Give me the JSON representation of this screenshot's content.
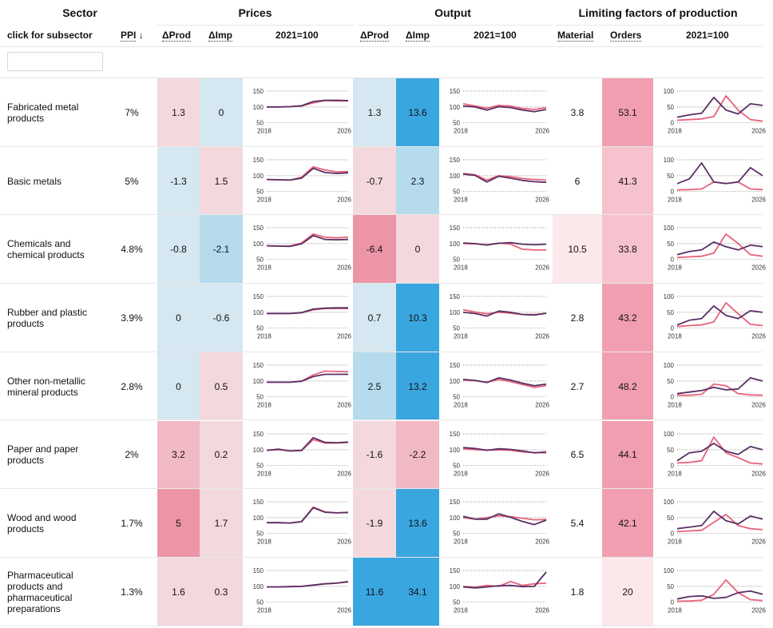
{
  "header": {
    "sector": "Sector",
    "prices": "Prices",
    "output": "Output",
    "limiting": "Limiting factors of production"
  },
  "subheader": {
    "subsector": "click for subsector",
    "ppi": "PPI",
    "ppi_sort": "↓",
    "dprod": "ΔProd",
    "dimp": "ΔImp",
    "index": "2021=100",
    "material": "Material",
    "orders": "Orders"
  },
  "search": {
    "value": "",
    "placeholder": ""
  },
  "axis": {
    "prices_ticks": [
      "150",
      "100",
      "50"
    ],
    "output_ticks": [
      "150",
      "100",
      "50"
    ],
    "limiting_ticks": [
      "100",
      "50",
      "0"
    ],
    "year_start": "2018",
    "year_end": "2026"
  },
  "colors": {
    "pos_strong": "#ec95a6",
    "pos_mid": "#f0b9c3",
    "pos_light": "#f3d9dd",
    "pos_faint": "#fbe8eb",
    "neg_light": "#d5e7f0",
    "neg_mid": "#b5dbed",
    "neg_strong": "#3aa6e0",
    "orders_strong": "#f19fb0",
    "orders_mid": "#f6c2cd",
    "series_primary": "#5a2f64",
    "series_secondary": "#e8637b"
  },
  "rows": [
    {
      "name": "Fabricated metal products",
      "ppi": "7%",
      "dprod_prices": "1.3",
      "dimp_prices": "0",
      "dprod_output": "1.3",
      "dimp_output": "13.6",
      "material": "3.8",
      "orders": "53.1",
      "c": {
        "pdp": "pos_light",
        "pip": "neg_light",
        "pdo": "neg_light",
        "pio": "neg_strong",
        "mat": "none",
        "ord": "orders_strong"
      }
    },
    {
      "name": "Basic metals",
      "ppi": "5%",
      "dprod_prices": "-1.3",
      "dimp_prices": "1.5",
      "dprod_output": "-0.7",
      "dimp_output": "2.3",
      "material": "6",
      "orders": "41.3",
      "c": {
        "pdp": "neg_light",
        "pip": "pos_light",
        "pdo": "pos_light",
        "pio": "neg_mid",
        "mat": "none",
        "ord": "orders_mid"
      }
    },
    {
      "name": "Chemicals and chemical products",
      "ppi": "4.8%",
      "dprod_prices": "-0.8",
      "dimp_prices": "-2.1",
      "dprod_output": "-6.4",
      "dimp_output": "0",
      "material": "10.5",
      "orders": "33.8",
      "c": {
        "pdp": "neg_light",
        "pip": "neg_mid",
        "pdo": "pos_strong",
        "pio": "pos_light",
        "mat": "pos_faint",
        "ord": "orders_mid"
      }
    },
    {
      "name": "Rubber and plastic products",
      "ppi": "3.9%",
      "dprod_prices": "0",
      "dimp_prices": "-0.6",
      "dprod_output": "0.7",
      "dimp_output": "10.3",
      "material": "2.8",
      "orders": "43.2",
      "c": {
        "pdp": "neg_light",
        "pip": "neg_light",
        "pdo": "neg_light",
        "pio": "neg_strong",
        "mat": "none",
        "ord": "orders_strong"
      }
    },
    {
      "name": "Other non-metallic mineral products",
      "ppi": "2.8%",
      "dprod_prices": "0",
      "dimp_prices": "0.5",
      "dprod_output": "2.5",
      "dimp_output": "13.2",
      "material": "2.7",
      "orders": "48.2",
      "c": {
        "pdp": "neg_light",
        "pip": "pos_light",
        "pdo": "neg_mid",
        "pio": "neg_strong",
        "mat": "none",
        "ord": "orders_strong"
      }
    },
    {
      "name": "Paper and paper products",
      "ppi": "2%",
      "dprod_prices": "3.2",
      "dimp_prices": "0.2",
      "dprod_output": "-1.6",
      "dimp_output": "-2.2",
      "material": "6.5",
      "orders": "44.1",
      "c": {
        "pdp": "pos_mid",
        "pip": "pos_light",
        "pdo": "pos_light",
        "pio": "pos_mid",
        "mat": "none",
        "ord": "orders_strong"
      }
    },
    {
      "name": "Wood and wood products",
      "ppi": "1.7%",
      "dprod_prices": "5",
      "dimp_prices": "1.7",
      "dprod_output": "-1.9",
      "dimp_output": "13.6",
      "material": "5.4",
      "orders": "42.1",
      "c": {
        "pdp": "pos_strong",
        "pip": "pos_light",
        "pdo": "pos_light",
        "pio": "neg_strong",
        "mat": "none",
        "ord": "orders_strong"
      }
    },
    {
      "name": "Pharmaceutical products and pharmaceutical preparations",
      "ppi": "1.3%",
      "dprod_prices": "1.6",
      "dimp_prices": "0.3",
      "dprod_output": "11.6",
      "dimp_output": "34.1",
      "material": "1.8",
      "orders": "20",
      "c": {
        "pdp": "pos_light",
        "pip": "pos_light",
        "pdo": "neg_strong",
        "pio": "neg_strong",
        "mat": "none",
        "ord": "pos_faint"
      }
    }
  ],
  "chart_data": [
    {
      "type": "line",
      "title": "Prices 2021=100",
      "ylim": [
        50,
        150
      ],
      "x": [
        "2018",
        "2026"
      ],
      "series_by_row": [
        {
          "a": [
            100,
            100,
            101,
            104,
            117,
            121,
            121,
            120
          ],
          "b": [
            100,
            100,
            101,
            103,
            113,
            120,
            119,
            119
          ]
        },
        {
          "a": [
            88,
            87,
            86,
            92,
            123,
            110,
            107,
            109
          ],
          "b": [
            88,
            87,
            86,
            95,
            128,
            118,
            112,
            113
          ]
        },
        {
          "a": [
            93,
            92,
            91,
            99,
            125,
            113,
            112,
            113
          ],
          "b": [
            93,
            92,
            92,
            102,
            130,
            120,
            118,
            120
          ]
        },
        {
          "a": [
            96,
            96,
            96,
            99,
            110,
            113,
            114,
            114
          ],
          "b": [
            96,
            96,
            96,
            98,
            108,
            112,
            112,
            112
          ]
        },
        {
          "a": [
            96,
            96,
            96,
            99,
            114,
            121,
            121,
            121
          ],
          "b": [
            96,
            96,
            96,
            100,
            119,
            131,
            130,
            129
          ]
        },
        {
          "a": [
            98,
            102,
            96,
            98,
            138,
            123,
            122,
            124
          ],
          "b": [
            98,
            100,
            96,
            97,
            132,
            121,
            121,
            123
          ]
        },
        {
          "a": [
            84,
            84,
            83,
            87,
            131,
            117,
            115,
            116
          ],
          "b": [
            84,
            84,
            83,
            88,
            133,
            118,
            115,
            117
          ]
        },
        {
          "a": [
            98,
            98,
            99,
            100,
            104,
            108,
            110,
            115
          ],
          "b": [
            98,
            98,
            99,
            100,
            104,
            108,
            110,
            114
          ]
        }
      ]
    },
    {
      "type": "line",
      "title": "Output 2021=100",
      "ylim": [
        50,
        150
      ],
      "x": [
        "2018",
        "2026"
      ],
      "series_by_row": [
        {
          "a": [
            103,
            100,
            90,
            101,
            98,
            90,
            85,
            92
          ],
          "b": [
            110,
            103,
            96,
            105,
            103,
            95,
            92,
            98
          ]
        },
        {
          "a": [
            105,
            101,
            80,
            98,
            92,
            85,
            81,
            79
          ],
          "b": [
            107,
            103,
            86,
            100,
            97,
            91,
            88,
            86
          ]
        },
        {
          "a": [
            102,
            100,
            95,
            101,
            103,
            98,
            96,
            98
          ],
          "b": [
            100,
            99,
            96,
            102,
            98,
            82,
            80,
            80
          ]
        },
        {
          "a": [
            100,
            96,
            88,
            104,
            100,
            93,
            91,
            97
          ],
          "b": [
            108,
            101,
            95,
            100,
            97,
            93,
            93,
            96
          ]
        },
        {
          "a": [
            105,
            102,
            95,
            110,
            103,
            93,
            85,
            90
          ],
          "b": [
            103,
            101,
            96,
            105,
            98,
            89,
            80,
            85
          ]
        },
        {
          "a": [
            107,
            104,
            98,
            103,
            101,
            96,
            90,
            93
          ],
          "b": [
            103,
            100,
            99,
            99,
            98,
            93,
            91,
            90
          ]
        },
        {
          "a": [
            104,
            95,
            95,
            112,
            101,
            88,
            78,
            92
          ],
          "b": [
            100,
            95,
            100,
            106,
            103,
            98,
            93,
            94
          ]
        },
        {
          "a": [
            98,
            95,
            98,
            102,
            103,
            99,
            100,
            145
          ],
          "b": [
            100,
            97,
            103,
            100,
            115,
            103,
            108,
            110
          ]
        }
      ]
    },
    {
      "type": "line",
      "title": "Limiting factors 2021=100",
      "ylim": [
        0,
        100
      ],
      "x": [
        "2018",
        "2026"
      ],
      "series_by_row": [
        {
          "a": [
            18,
            25,
            30,
            80,
            40,
            28,
            60,
            55
          ],
          "b": [
            8,
            10,
            12,
            20,
            85,
            40,
            10,
            5
          ]
        },
        {
          "a": [
            25,
            40,
            90,
            30,
            25,
            30,
            75,
            50
          ],
          "b": [
            5,
            6,
            8,
            30,
            25,
            30,
            8,
            6
          ]
        },
        {
          "a": [
            15,
            25,
            30,
            55,
            40,
            30,
            45,
            40
          ],
          "b": [
            6,
            8,
            10,
            20,
            80,
            50,
            15,
            10
          ]
        },
        {
          "a": [
            10,
            25,
            30,
            70,
            40,
            30,
            55,
            50
          ],
          "b": [
            5,
            8,
            10,
            20,
            80,
            45,
            12,
            8
          ]
        },
        {
          "a": [
            10,
            15,
            20,
            30,
            22,
            25,
            60,
            50
          ],
          "b": [
            5,
            5,
            8,
            40,
            35,
            10,
            6,
            5
          ]
        },
        {
          "a": [
            15,
            40,
            45,
            70,
            45,
            35,
            60,
            50
          ],
          "b": [
            8,
            10,
            15,
            90,
            40,
            25,
            8,
            5
          ]
        },
        {
          "a": [
            15,
            20,
            25,
            70,
            40,
            30,
            55,
            45
          ],
          "b": [
            6,
            8,
            10,
            35,
            60,
            25,
            15,
            12
          ]
        },
        {
          "a": [
            10,
            18,
            20,
            12,
            15,
            30,
            35,
            25
          ],
          "b": [
            3,
            4,
            6,
            25,
            70,
            30,
            8,
            5
          ]
        }
      ]
    }
  ]
}
